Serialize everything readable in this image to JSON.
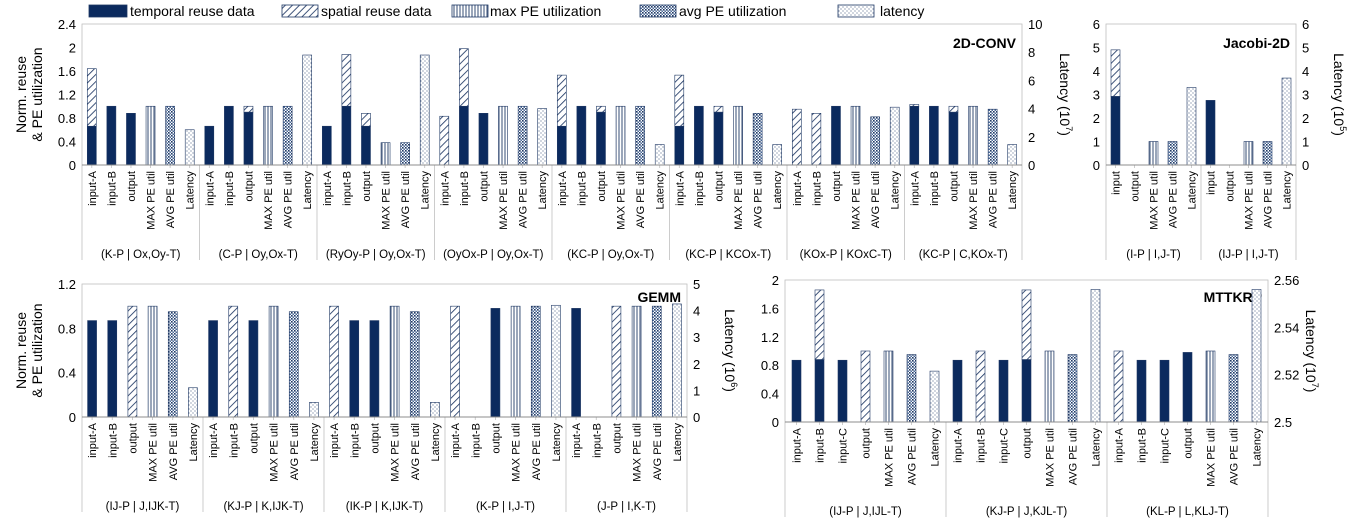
{
  "legend": {
    "temporal": "temporal reuse data",
    "spatial": "spatial reuse data",
    "maxpe": "max PE utilization",
    "avgpe": "avg PE utilization",
    "latency": "latency"
  },
  "colors": {
    "temporal": "#0b2a5e",
    "stroke": "#1f3864",
    "gridline": "#d9d9d9"
  },
  "chart_data": [
    {
      "type": "bar",
      "title": "2D-CONV",
      "ylabel": "Norm. reuse & PE utilization",
      "y2label": "Latency (10^7)",
      "y2label_base": "Latency (10",
      "y2label_exp": "7",
      "ylim": [
        0,
        2.4
      ],
      "yticks": [
        "0",
        "0.4",
        "0.8",
        "1.2",
        "1.6",
        "2",
        "2.4"
      ],
      "y2lim": [
        0,
        10
      ],
      "y2ticks": [
        "0",
        "2",
        "4",
        "6",
        "8",
        "10"
      ],
      "groups": [
        {
          "label": "(K-P | Ox,Oy-T)",
          "bars": [
            {
              "label": "input-A",
              "temporal": 0.66,
              "spatial": 0.98
            },
            {
              "label": "input-B",
              "temporal": 1.0
            },
            {
              "label": "output",
              "temporal": 0.88
            },
            {
              "label": "MAX PE util",
              "maxpe": 1.0
            },
            {
              "label": "AVG PE util",
              "avgpe": 1.0
            },
            {
              "label": "Latency",
              "latency": 2.5
            }
          ]
        },
        {
          "label": "(C-P | Oy,Ox-T)",
          "bars": [
            {
              "label": "input-A",
              "temporal": 0.66
            },
            {
              "label": "input-B",
              "temporal": 1.0
            },
            {
              "label": "output",
              "temporal": 0.9,
              "spatial": 0.1
            },
            {
              "label": "MAX PE util",
              "maxpe": 1.0
            },
            {
              "label": "AVG PE util",
              "avgpe": 1.0
            },
            {
              "label": "Latency",
              "latency": 7.8
            }
          ]
        },
        {
          "label": "(RyOy-P | Oy,Ox-T)",
          "bars": [
            {
              "label": "input-A",
              "temporal": 0.66
            },
            {
              "label": "input-B",
              "temporal": 1.0,
              "spatial": 0.88
            },
            {
              "label": "output",
              "temporal": 0.66,
              "spatial": 0.22
            },
            {
              "label": "MAX PE util",
              "maxpe": 0.38
            },
            {
              "label": "AVG PE util",
              "avgpe": 0.38
            },
            {
              "label": "Latency",
              "latency": 7.8
            }
          ]
        },
        {
          "label": "(OyOx-P | Oy,Ox-T)",
          "bars": [
            {
              "label": "input-A",
              "spatial": 0.83
            },
            {
              "label": "input-B",
              "temporal": 1.0,
              "spatial": 0.98
            },
            {
              "label": "output",
              "temporal": 0.88
            },
            {
              "label": "MAX PE util",
              "maxpe": 1.0
            },
            {
              "label": "AVG PE util",
              "avgpe": 1.0
            },
            {
              "label": "Latency",
              "latency": 4.0
            }
          ]
        },
        {
          "label": "(KC-P | Oy,Ox-T)",
          "bars": [
            {
              "label": "input-A",
              "temporal": 0.66,
              "spatial": 0.87
            },
            {
              "label": "input-B",
              "temporal": 1.0
            },
            {
              "label": "output",
              "temporal": 0.9,
              "spatial": 0.1
            },
            {
              "label": "MAX PE util",
              "maxpe": 1.0
            },
            {
              "label": "AVG PE util",
              "avgpe": 1.0
            },
            {
              "label": "Latency",
              "latency": 1.45
            }
          ]
        },
        {
          "label": "(KC-P | KCOx-T)",
          "bars": [
            {
              "label": "input-A",
              "temporal": 0.66,
              "spatial": 0.87
            },
            {
              "label": "input-B",
              "temporal": 1.0
            },
            {
              "label": "output",
              "temporal": 0.9,
              "spatial": 0.1
            },
            {
              "label": "MAX PE util",
              "maxpe": 1.0
            },
            {
              "label": "AVG PE util",
              "avgpe": 0.88
            },
            {
              "label": "Latency",
              "latency": 1.45
            }
          ]
        },
        {
          "label": "(KOx-P | KOxC-T)",
          "bars": [
            {
              "label": "input-A",
              "spatial": 0.95
            },
            {
              "label": "input-B",
              "spatial": 0.88
            },
            {
              "label": "output",
              "temporal": 1.0
            },
            {
              "label": "MAX PE util",
              "maxpe": 1.0
            },
            {
              "label": "AVG PE util",
              "avgpe": 0.82
            },
            {
              "label": "Latency",
              "latency": 4.1
            }
          ]
        },
        {
          "label": "(KC-P | C,KOx-T)",
          "bars": [
            {
              "label": "input-A",
              "temporal": 1.0,
              "spatial": 0.03
            },
            {
              "label": "input-B",
              "temporal": 1.0
            },
            {
              "label": "output",
              "temporal": 0.9,
              "spatial": 0.1
            },
            {
              "label": "MAX PE util",
              "maxpe": 1.0
            },
            {
              "label": "AVG PE util",
              "avgpe": 0.95
            },
            {
              "label": "Latency",
              "latency": 1.45
            }
          ]
        }
      ]
    },
    {
      "type": "bar",
      "title": "Jacobi-2D",
      "y2label": "Latency (10^5)",
      "y2label_base": "Latency (10",
      "y2label_exp": "5",
      "ylim": [
        0,
        6
      ],
      "yticks": [
        "0",
        "1",
        "2",
        "3",
        "4",
        "5",
        "6"
      ],
      "y2lim": [
        0,
        6
      ],
      "y2ticks": [
        "0",
        "1",
        "2",
        "3",
        "4",
        "5",
        "6"
      ],
      "groups": [
        {
          "label": "(I-P | I,J-T)",
          "bars": [
            {
              "label": "input",
              "temporal": 2.92,
              "spatial": 1.98
            },
            {
              "label": "output"
            },
            {
              "label": "MAX PE util",
              "maxpe": 1.0
            },
            {
              "label": "AVG PE util",
              "avgpe": 1.0
            },
            {
              "label": "Latency",
              "latency": 3.3
            }
          ]
        },
        {
          "label": "(IJ-P | I,J-T)",
          "bars": [
            {
              "label": "input",
              "temporal": 2.75
            },
            {
              "label": "output"
            },
            {
              "label": "MAX PE util",
              "maxpe": 1.0
            },
            {
              "label": "AVG PE util",
              "avgpe": 1.0
            },
            {
              "label": "Latency",
              "latency": 3.7
            }
          ]
        }
      ]
    },
    {
      "type": "bar",
      "title": "GEMM",
      "ylabel": "Norm. reuse & PE utilization",
      "y2label": "Latency (10^6)",
      "y2label_base": "Latency (10",
      "y2label_exp": "6",
      "ylim": [
        0,
        1.2
      ],
      "yticks": [
        "0",
        "0.4",
        "0.8",
        "1.2"
      ],
      "y2lim": [
        0,
        5
      ],
      "y2ticks": [
        "0",
        "1",
        "2",
        "3",
        "4",
        "5"
      ],
      "groups": [
        {
          "label": "(IJ-P | J,IJK-T)",
          "bars": [
            {
              "label": "input-A",
              "temporal": 0.87
            },
            {
              "label": "input-B",
              "temporal": 0.87
            },
            {
              "label": "output",
              "spatial": 1.0
            },
            {
              "label": "MAX PE util",
              "maxpe": 1.0
            },
            {
              "label": "AVG PE util",
              "avgpe": 0.95
            },
            {
              "label": "Latency",
              "latency": 1.1
            }
          ]
        },
        {
          "label": "(KJ-P | K,IJK-T)",
          "bars": [
            {
              "label": "input-A",
              "temporal": 0.87
            },
            {
              "label": "input-B",
              "spatial": 1.0
            },
            {
              "label": "output",
              "temporal": 0.87
            },
            {
              "label": "MAX PE util",
              "maxpe": 1.0
            },
            {
              "label": "AVG PE util",
              "avgpe": 0.95
            },
            {
              "label": "Latency",
              "latency": 0.55
            }
          ]
        },
        {
          "label": "(IK-P | K,IJK-T)",
          "bars": [
            {
              "label": "input-A",
              "spatial": 1.0
            },
            {
              "label": "input-B",
              "temporal": 0.87
            },
            {
              "label": "output",
              "temporal": 0.87
            },
            {
              "label": "MAX PE util",
              "maxpe": 1.0
            },
            {
              "label": "AVG PE util",
              "avgpe": 0.95
            },
            {
              "label": "Latency",
              "latency": 0.55
            }
          ]
        },
        {
          "label": "(K-P | I,J-T)",
          "bars": [
            {
              "label": "input-A",
              "spatial": 1.0
            },
            {
              "label": "input-B"
            },
            {
              "label": "output",
              "temporal": 0.98
            },
            {
              "label": "MAX PE util",
              "maxpe": 1.0
            },
            {
              "label": "AVG PE util",
              "avgpe": 1.0
            },
            {
              "label": "Latency",
              "latency": 4.2
            }
          ]
        },
        {
          "label": "(J-P | I,K-T)",
          "bars": [
            {
              "label": "input-A",
              "temporal": 0.98
            },
            {
              "label": "input-B"
            },
            {
              "label": "output",
              "spatial": 1.0
            },
            {
              "label": "MAX PE util",
              "maxpe": 1.0
            },
            {
              "label": "AVG PE util",
              "avgpe": 1.0
            },
            {
              "label": "Latency",
              "latency": 4.25
            }
          ]
        }
      ]
    },
    {
      "type": "bar",
      "title": "MTTKRP",
      "y2label": "Latency (10^7)",
      "y2label_base": "Latency (10",
      "y2label_exp": "7",
      "ylim": [
        0,
        2
      ],
      "yticks": [
        "0",
        "0.4",
        "0.8",
        "1.2",
        "1.6",
        "2"
      ],
      "y2lim": [
        2.5,
        2.56
      ],
      "y2ticks": [
        "2.5",
        "2.52",
        "2.54",
        "2.56"
      ],
      "groups": [
        {
          "label": "(IJ-P | J,IJL-T)",
          "bars": [
            {
              "label": "input-A",
              "temporal": 0.87
            },
            {
              "label": "input-B",
              "temporal": 0.88,
              "spatial": 0.98
            },
            {
              "label": "input-C",
              "temporal": 0.87
            },
            {
              "label": "output",
              "spatial": 1.0
            },
            {
              "label": "MAX PE util",
              "maxpe": 1.0
            },
            {
              "label": "AVG PE util",
              "avgpe": 0.95
            },
            {
              "label": "Latency",
              "latency": 2.5215
            }
          ]
        },
        {
          "label": "(KJ-P | J,KJL-T)",
          "bars": [
            {
              "label": "input-A",
              "temporal": 0.87
            },
            {
              "label": "input-B",
              "spatial": 1.0
            },
            {
              "label": "input-C",
              "temporal": 0.87
            },
            {
              "label": "output",
              "temporal": 0.88,
              "spatial": 0.98
            },
            {
              "label": "MAX PE util",
              "maxpe": 1.0
            },
            {
              "label": "AVG PE util",
              "avgpe": 0.95
            },
            {
              "label": "Latency",
              "latency": 2.556
            }
          ]
        },
        {
          "label": "(KL-P | L,KLJ-T)",
          "bars": [
            {
              "label": "input-A",
              "spatial": 1.0
            },
            {
              "label": "input-B",
              "temporal": 0.87
            },
            {
              "label": "input-C",
              "temporal": 0.87
            },
            {
              "label": "output",
              "temporal": 0.98
            },
            {
              "label": "MAX PE util",
              "maxpe": 1.0
            },
            {
              "label": "AVG PE util",
              "avgpe": 0.95
            },
            {
              "label": "Latency",
              "latency": 2.556
            }
          ]
        }
      ]
    }
  ]
}
